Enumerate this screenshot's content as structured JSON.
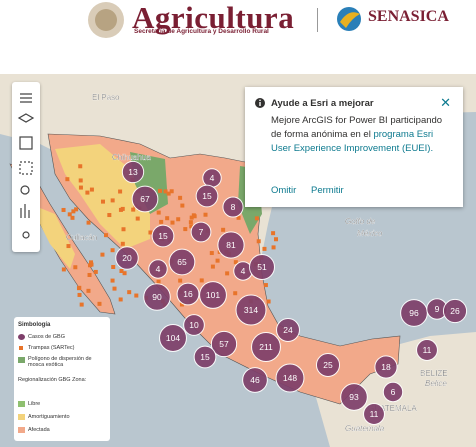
{
  "header": {
    "brand": "Agricultura",
    "brand_subtitle": "Secretaría de Agricultura y Desarrollo Rural",
    "partner": "SENASICA"
  },
  "map": {
    "place_labels": [
      "El Paso",
      "Chihuahua",
      "Culiacán",
      "Golfo de",
      "México",
      "BELIZE",
      "Belice",
      "GUATEMALA",
      "Guatemala"
    ],
    "clusters": [
      13,
      67,
      4,
      8,
      15,
      20,
      15,
      7,
      81,
      4,
      51,
      65,
      4,
      90,
      16,
      101,
      314,
      24,
      10,
      104,
      57,
      211,
      96,
      9,
      26,
      15,
      46,
      148,
      25,
      18,
      11,
      93,
      6,
      11
    ]
  },
  "popup": {
    "title": "Ayude a Esri a mejorar",
    "body": "Mejore ArcGIS for Power BI participando de forma anónima en el",
    "link": "programa Esri User Experience Improvement (EUEI).",
    "skip": "Omitir",
    "allow": "Permitir"
  },
  "legend": {
    "title": "Simbología",
    "cases": "Casos de GBG",
    "traps": "Trampas (SARTec)",
    "polygon": "Polígono de dispersión de mosca exótica",
    "zones_title": "Regionalización GBG Zona:",
    "zones": [
      "Libre",
      "Amortiguamiento",
      "Afectada"
    ]
  }
}
